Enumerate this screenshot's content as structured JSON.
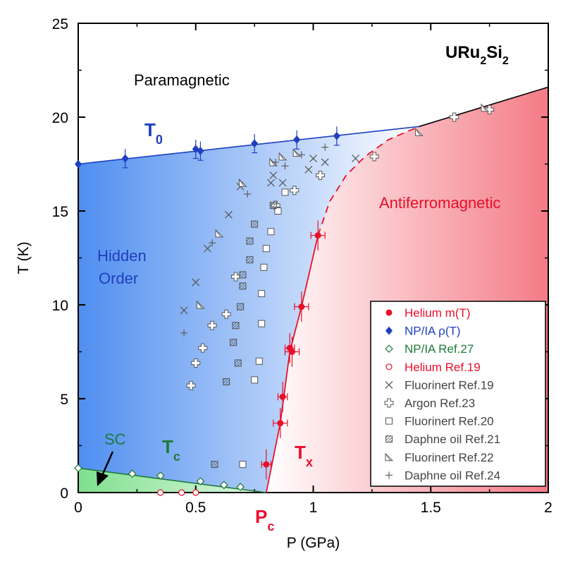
{
  "chart_data": {
    "type": "scatter",
    "title": "URu2Si2",
    "title_main": "URu",
    "title_sub1": "2",
    "title_mid": "Si",
    "title_sub2": "2",
    "xlabel": "P (GPa)",
    "ylabel": "T (K)",
    "xlim": [
      0,
      2
    ],
    "ylim": [
      0,
      25
    ],
    "xticks": [
      0,
      0.5,
      1,
      1.5,
      2
    ],
    "xtick_labels": [
      "0",
      "0.5",
      "1",
      "1.5",
      "2"
    ],
    "yticks": [
      0,
      5,
      10,
      15,
      20,
      25
    ],
    "ytick_labels": [
      "0",
      "5",
      "10",
      "15",
      "20",
      "25"
    ],
    "colors": {
      "blue": "#1f3fbf",
      "red": "#e8102a",
      "green": "#1e7a3a",
      "grey": "#555555",
      "black": "#000000"
    },
    "annotations": {
      "paramagnetic": "Paramagnetic",
      "hidden_order_1": "Hidden",
      "hidden_order_2": "Order",
      "antiferromagnetic": "Antiferromagnetic",
      "sc": "SC",
      "t0_main": "T",
      "t0_sub": "0",
      "tc_main": "T",
      "tc_sub": "c",
      "tx_main": "T",
      "tx_sub": "x",
      "pc_main": "P",
      "pc_sub": "c"
    },
    "lines": {
      "T0": [
        [
          0,
          17.5
        ],
        [
          1.45,
          19.5
        ]
      ],
      "upper": [
        [
          1.45,
          19.5
        ],
        [
          2.0,
          21.6
        ]
      ],
      "Tc": [
        [
          0,
          1.3
        ],
        [
          0.8,
          0
        ]
      ],
      "Tx": [
        [
          0.8,
          0
        ],
        [
          0.86,
          3.7
        ],
        [
          0.9,
          7.5
        ],
        [
          0.95,
          9.9
        ],
        [
          1.02,
          13.7
        ]
      ],
      "dashed": [
        [
          1.02,
          13.7
        ],
        [
          1.07,
          15.5
        ],
        [
          1.14,
          16.9
        ],
        [
          1.22,
          17.9
        ],
        [
          1.32,
          18.8
        ],
        [
          1.45,
          19.5
        ]
      ]
    },
    "legend": [
      {
        "label": "Helium m(T)",
        "marker": "filled-circle",
        "color": "#e8102a"
      },
      {
        "label": "NP/IA ρ(T)",
        "marker": "filled-diamond",
        "color": "#1f3fbf"
      },
      {
        "label": "NP/IA Ref.27",
        "marker": "open-diamond",
        "color": "#1e7a3a"
      },
      {
        "label": "Helium Ref.19",
        "marker": "open-circle",
        "color": "#e8102a"
      },
      {
        "label": "Fluorinert Ref.19",
        "marker": "x",
        "color": "#555555"
      },
      {
        "label": "Argon Ref.23",
        "marker": "open-cross",
        "color": "#555555"
      },
      {
        "label": "Fluorinert Ref.20",
        "marker": "open-square",
        "color": "#555555"
      },
      {
        "label": "Daphne oil Ref.21",
        "marker": "hatched-square",
        "color": "#555555"
      },
      {
        "label": "Fluorinert Ref.22",
        "marker": "half-triangle",
        "color": "#555555"
      },
      {
        "label": "Daphne oil Ref.24",
        "marker": "plus",
        "color": "#555555"
      }
    ],
    "series": [
      {
        "name": "Helium m(T)",
        "marker": "filled-circle",
        "color": "#e8102a",
        "points": [
          [
            0.8,
            1.5,
            0.02
          ],
          [
            0.86,
            3.7,
            0.03
          ],
          [
            0.87,
            5.1,
            0.02
          ],
          [
            0.9,
            7.7,
            0.02
          ],
          [
            0.91,
            7.5,
            0.03
          ],
          [
            0.95,
            9.9,
            0.03
          ],
          [
            1.02,
            13.7,
            0.03
          ]
        ]
      },
      {
        "name": "NP/IA ρ(T)",
        "marker": "filled-diamond",
        "color": "#1f3fbf",
        "points": [
          [
            0,
            17.5
          ],
          [
            0.2,
            17.8
          ],
          [
            0.5,
            18.3
          ],
          [
            0.52,
            18.2
          ],
          [
            0.75,
            18.6
          ],
          [
            0.93,
            18.8
          ],
          [
            1.1,
            19.0
          ]
        ]
      },
      {
        "name": "NP/IA Ref.27",
        "marker": "open-diamond",
        "color": "#1e7a3a",
        "points": [
          [
            0,
            1.3
          ],
          [
            0.23,
            1.0
          ],
          [
            0.35,
            0.9
          ],
          [
            0.52,
            0.6
          ],
          [
            0.62,
            0.4
          ],
          [
            0.69,
            0.3
          ]
        ]
      },
      {
        "name": "Helium Ref.19",
        "marker": "open-circle",
        "color": "#e8102a",
        "points": [
          [
            0.35,
            0
          ],
          [
            0.44,
            0
          ],
          [
            0.5,
            0
          ]
        ]
      },
      {
        "name": "Fluorinert Ref.19",
        "marker": "x",
        "color": "#555555",
        "points": [
          [
            0.45,
            9.7
          ],
          [
            0.5,
            11.2
          ],
          [
            0.55,
            13.0
          ],
          [
            0.64,
            14.8
          ],
          [
            0.69,
            16.3
          ],
          [
            0.82,
            16.5
          ],
          [
            0.83,
            16.9
          ],
          [
            0.87,
            16.5
          ],
          [
            0.98,
            17.2
          ],
          [
            1.0,
            17.8
          ],
          [
            1.05,
            17.6
          ],
          [
            1.18,
            17.8
          ]
        ]
      },
      {
        "name": "Argon Ref.23",
        "marker": "open-cross",
        "color": "#555555",
        "points": [
          [
            0.48,
            5.7
          ],
          [
            0.5,
            6.9
          ],
          [
            0.53,
            7.7
          ],
          [
            0.57,
            8.9
          ],
          [
            0.63,
            9.5
          ],
          [
            0.67,
            11.5
          ],
          [
            0.84,
            15.3
          ],
          [
            0.92,
            16.1
          ],
          [
            1.03,
            16.9
          ],
          [
            1.26,
            17.9
          ],
          [
            1.6,
            20.0
          ],
          [
            1.75,
            20.4
          ]
        ]
      },
      {
        "name": "Fluorinert Ref.20",
        "marker": "open-square",
        "color": "#555555",
        "points": [
          [
            0.7,
            1.5
          ],
          [
            0.75,
            6.0
          ],
          [
            0.77,
            7.0
          ],
          [
            0.78,
            9.0
          ],
          [
            0.78,
            10.6
          ],
          [
            0.79,
            12.0
          ],
          [
            0.8,
            13.0
          ],
          [
            0.82,
            13.9
          ],
          [
            0.85,
            15.0
          ],
          [
            0.88,
            16.0
          ]
        ]
      },
      {
        "name": "Daphne oil Ref.21",
        "marker": "hatched-square",
        "color": "#555555",
        "points": [
          [
            0.58,
            1.5
          ],
          [
            0.63,
            5.9
          ],
          [
            0.68,
            6.9
          ],
          [
            0.66,
            8.0
          ],
          [
            0.67,
            8.9
          ],
          [
            0.69,
            9.9
          ],
          [
            0.7,
            11.0
          ],
          [
            0.7,
            11.6
          ],
          [
            0.73,
            12.4
          ],
          [
            0.73,
            13.4
          ],
          [
            0.75,
            14.3
          ],
          [
            0.83,
            15.3
          ]
        ]
      },
      {
        "name": "Fluorinert Ref.22",
        "marker": "half-triangle",
        "color": "#555555",
        "points": [
          [
            0.52,
            10.0
          ],
          [
            0.6,
            13.8
          ],
          [
            0.7,
            16.5
          ],
          [
            0.83,
            17.6
          ],
          [
            0.87,
            17.9
          ],
          [
            0.93,
            18.1
          ],
          [
            1.45,
            19.2
          ],
          [
            1.73,
            20.5
          ]
        ]
      },
      {
        "name": "Daphne oil Ref.24",
        "marker": "plus",
        "color": "#555555",
        "points": [
          [
            0.45,
            8.5
          ],
          [
            0.57,
            13.3
          ],
          [
            0.72,
            15.9
          ],
          [
            0.84,
            17.6
          ],
          [
            0.88,
            17.4
          ],
          [
            0.95,
            18.0
          ],
          [
            1.05,
            18.4
          ]
        ]
      }
    ]
  }
}
